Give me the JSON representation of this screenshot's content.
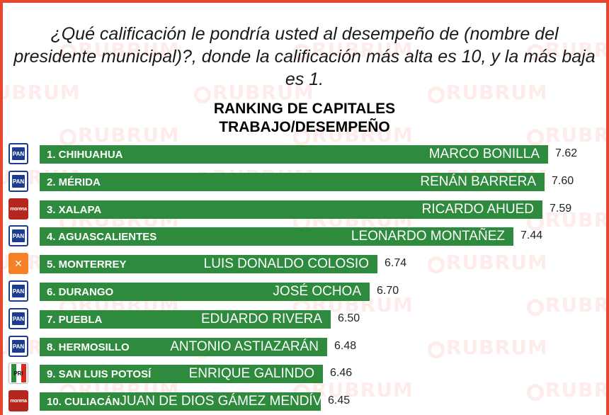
{
  "watermark": "RUBRUM",
  "question": "¿Qué calificación le pondría usted al desempeño de (nombre del presidente municipal)?, donde la calificación más alta es 10, y la más baja es 1.",
  "colors": {
    "bar": "#2e8b3d",
    "frame": "#e8472f",
    "pan": "#1c3c8f",
    "morena": "#b5261e",
    "mc": "#f58025"
  },
  "chart_data": {
    "type": "bar",
    "orientation": "horizontal",
    "title_lines": [
      "RANKING DE CAPITALES",
      "TRABAJO/DESEMPEÑO"
    ],
    "scale_max": 7.62,
    "rows": [
      {
        "city": "1. CHIHUAHUA",
        "person": "MARCO BONILLA",
        "value": 7.62,
        "label": "7.62",
        "party": "PAN"
      },
      {
        "city": "2. MÉRIDA",
        "person": "RENÁN BARRERA",
        "value": 7.6,
        "label": "7.60",
        "party": "PAN"
      },
      {
        "city": "3. XALAPA",
        "person": "RICARDO AHUED",
        "value": 7.59,
        "label": "7.59",
        "party": "morena"
      },
      {
        "city": "4. AGUASCALIENTES",
        "person": "LEONARDO MONTAÑEZ",
        "value": 7.44,
        "label": "7.44",
        "party": "PAN"
      },
      {
        "city": "5. MONTERREY",
        "person": "LUIS DONALDO COLOSIO",
        "value": 6.74,
        "label": "6.74",
        "party": "MC"
      },
      {
        "city": "6. DURANGO",
        "person": "JOSÉ OCHOA",
        "value": 6.7,
        "label": "6.70",
        "party": "PAN"
      },
      {
        "city": "7. PUEBLA",
        "person": "EDUARDO RIVERA",
        "value": 6.5,
        "label": "6.50",
        "party": "PAN"
      },
      {
        "city": "8. HERMOSILLO",
        "person": "ANTONIO ASTIAZARÁN",
        "value": 6.48,
        "label": "6.48",
        "party": "PAN"
      },
      {
        "city": "9. SAN LUIS POTOSÍ",
        "person": "ENRIQUE GALINDO",
        "value": 6.46,
        "label": "6.46",
        "party": "PRI"
      },
      {
        "city": "10. CULIACÁN",
        "person": "JUAN DE DIOS GÁMEZ MENDÍVIL",
        "value": 6.45,
        "label": "6.45",
        "party": "morena"
      }
    ]
  }
}
